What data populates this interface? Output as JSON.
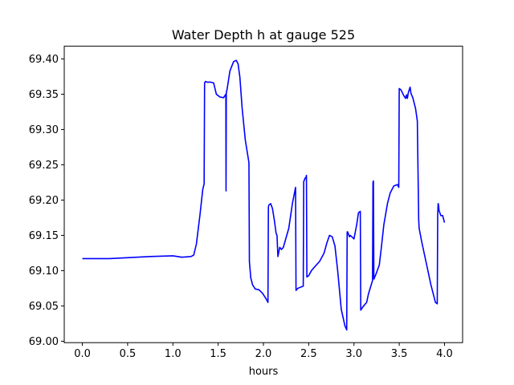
{
  "chart_data": {
    "type": "line",
    "title": "Water Depth h at gauge 525",
    "xlabel": "hours",
    "ylabel": "",
    "xlim": [
      -0.2,
      4.2
    ],
    "ylim": [
      68.998,
      69.418
    ],
    "x_ticks": [
      "0.0",
      "0.5",
      "1.0",
      "1.5",
      "2.0",
      "2.5",
      "3.0",
      "3.5",
      "4.0"
    ],
    "y_ticks": [
      "69.00",
      "69.05",
      "69.10",
      "69.15",
      "69.20",
      "69.25",
      "69.30",
      "69.35",
      "69.40"
    ],
    "grid": false,
    "legend": "none",
    "series": [
      {
        "color": "#0000ff",
        "x": [
          0.0,
          0.3,
          0.6,
          0.75,
          1.0,
          1.05,
          1.1,
          1.2,
          1.23,
          1.26,
          1.3,
          1.33,
          1.345,
          1.35,
          1.36,
          1.38,
          1.42,
          1.45,
          1.48,
          1.52,
          1.56,
          1.585,
          1.587,
          1.59,
          1.6,
          1.63,
          1.67,
          1.7,
          1.72,
          1.74,
          1.765,
          1.8,
          1.84,
          1.845,
          1.86,
          1.88,
          1.91,
          1.95,
          1.99,
          2.03,
          2.05,
          2.055,
          2.06,
          2.08,
          2.1,
          2.12,
          2.14,
          2.15,
          2.16,
          2.18,
          2.2,
          2.22,
          2.28,
          2.32,
          2.355,
          2.36,
          2.38,
          2.44,
          2.445,
          2.46,
          2.47,
          2.475,
          2.48,
          2.5,
          2.53,
          2.57,
          2.62,
          2.67,
          2.7,
          2.73,
          2.76,
          2.79,
          2.82,
          2.86,
          2.9,
          2.92,
          2.925,
          2.93,
          2.95,
          2.96,
          3.0,
          3.03,
          3.05,
          3.07,
          3.075,
          3.08,
          3.1,
          3.14,
          3.16,
          3.205,
          3.21,
          3.215,
          3.22,
          3.24,
          3.28,
          3.3,
          3.33,
          3.37,
          3.4,
          3.44,
          3.48,
          3.495,
          3.5,
          3.52,
          3.55,
          3.57,
          3.58,
          3.59,
          3.6,
          3.62,
          3.63,
          3.65,
          3.68,
          3.7,
          3.715,
          3.72,
          3.75,
          3.8,
          3.85,
          3.9,
          3.92,
          3.925,
          3.93,
          3.935,
          3.94,
          3.96,
          3.98,
          4.0
        ],
        "y": [
          69.117,
          69.117,
          69.119,
          69.12,
          69.121,
          69.12,
          69.119,
          69.12,
          69.122,
          69.138,
          69.18,
          69.215,
          69.223,
          69.366,
          69.368,
          69.367,
          69.367,
          69.366,
          69.35,
          69.346,
          69.345,
          69.35,
          69.213,
          69.352,
          69.358,
          69.383,
          69.396,
          69.398,
          69.393,
          69.374,
          69.33,
          69.285,
          69.253,
          69.113,
          69.09,
          69.08,
          69.074,
          69.073,
          69.068,
          69.06,
          69.055,
          69.19,
          69.193,
          69.195,
          69.188,
          69.172,
          69.153,
          69.15,
          69.12,
          69.133,
          69.13,
          69.133,
          69.16,
          69.195,
          69.218,
          69.072,
          69.075,
          69.078,
          69.226,
          69.231,
          69.232,
          69.235,
          69.091,
          69.093,
          69.1,
          69.106,
          69.113,
          69.125,
          69.139,
          69.15,
          69.148,
          69.135,
          69.1,
          69.045,
          69.022,
          69.016,
          69.155,
          69.155,
          69.148,
          69.15,
          69.145,
          69.165,
          69.182,
          69.184,
          69.044,
          69.045,
          69.049,
          69.055,
          69.067,
          69.086,
          69.225,
          69.227,
          69.088,
          69.094,
          69.108,
          69.13,
          69.165,
          69.195,
          69.21,
          69.22,
          69.222,
          69.218,
          69.358,
          69.356,
          69.348,
          69.344,
          69.349,
          69.344,
          69.352,
          69.36,
          69.351,
          69.345,
          69.33,
          69.312,
          69.172,
          69.16,
          69.14,
          69.11,
          69.08,
          69.055,
          69.053,
          69.18,
          69.195,
          69.192,
          69.185,
          69.178,
          69.178,
          69.168
        ]
      }
    ]
  }
}
